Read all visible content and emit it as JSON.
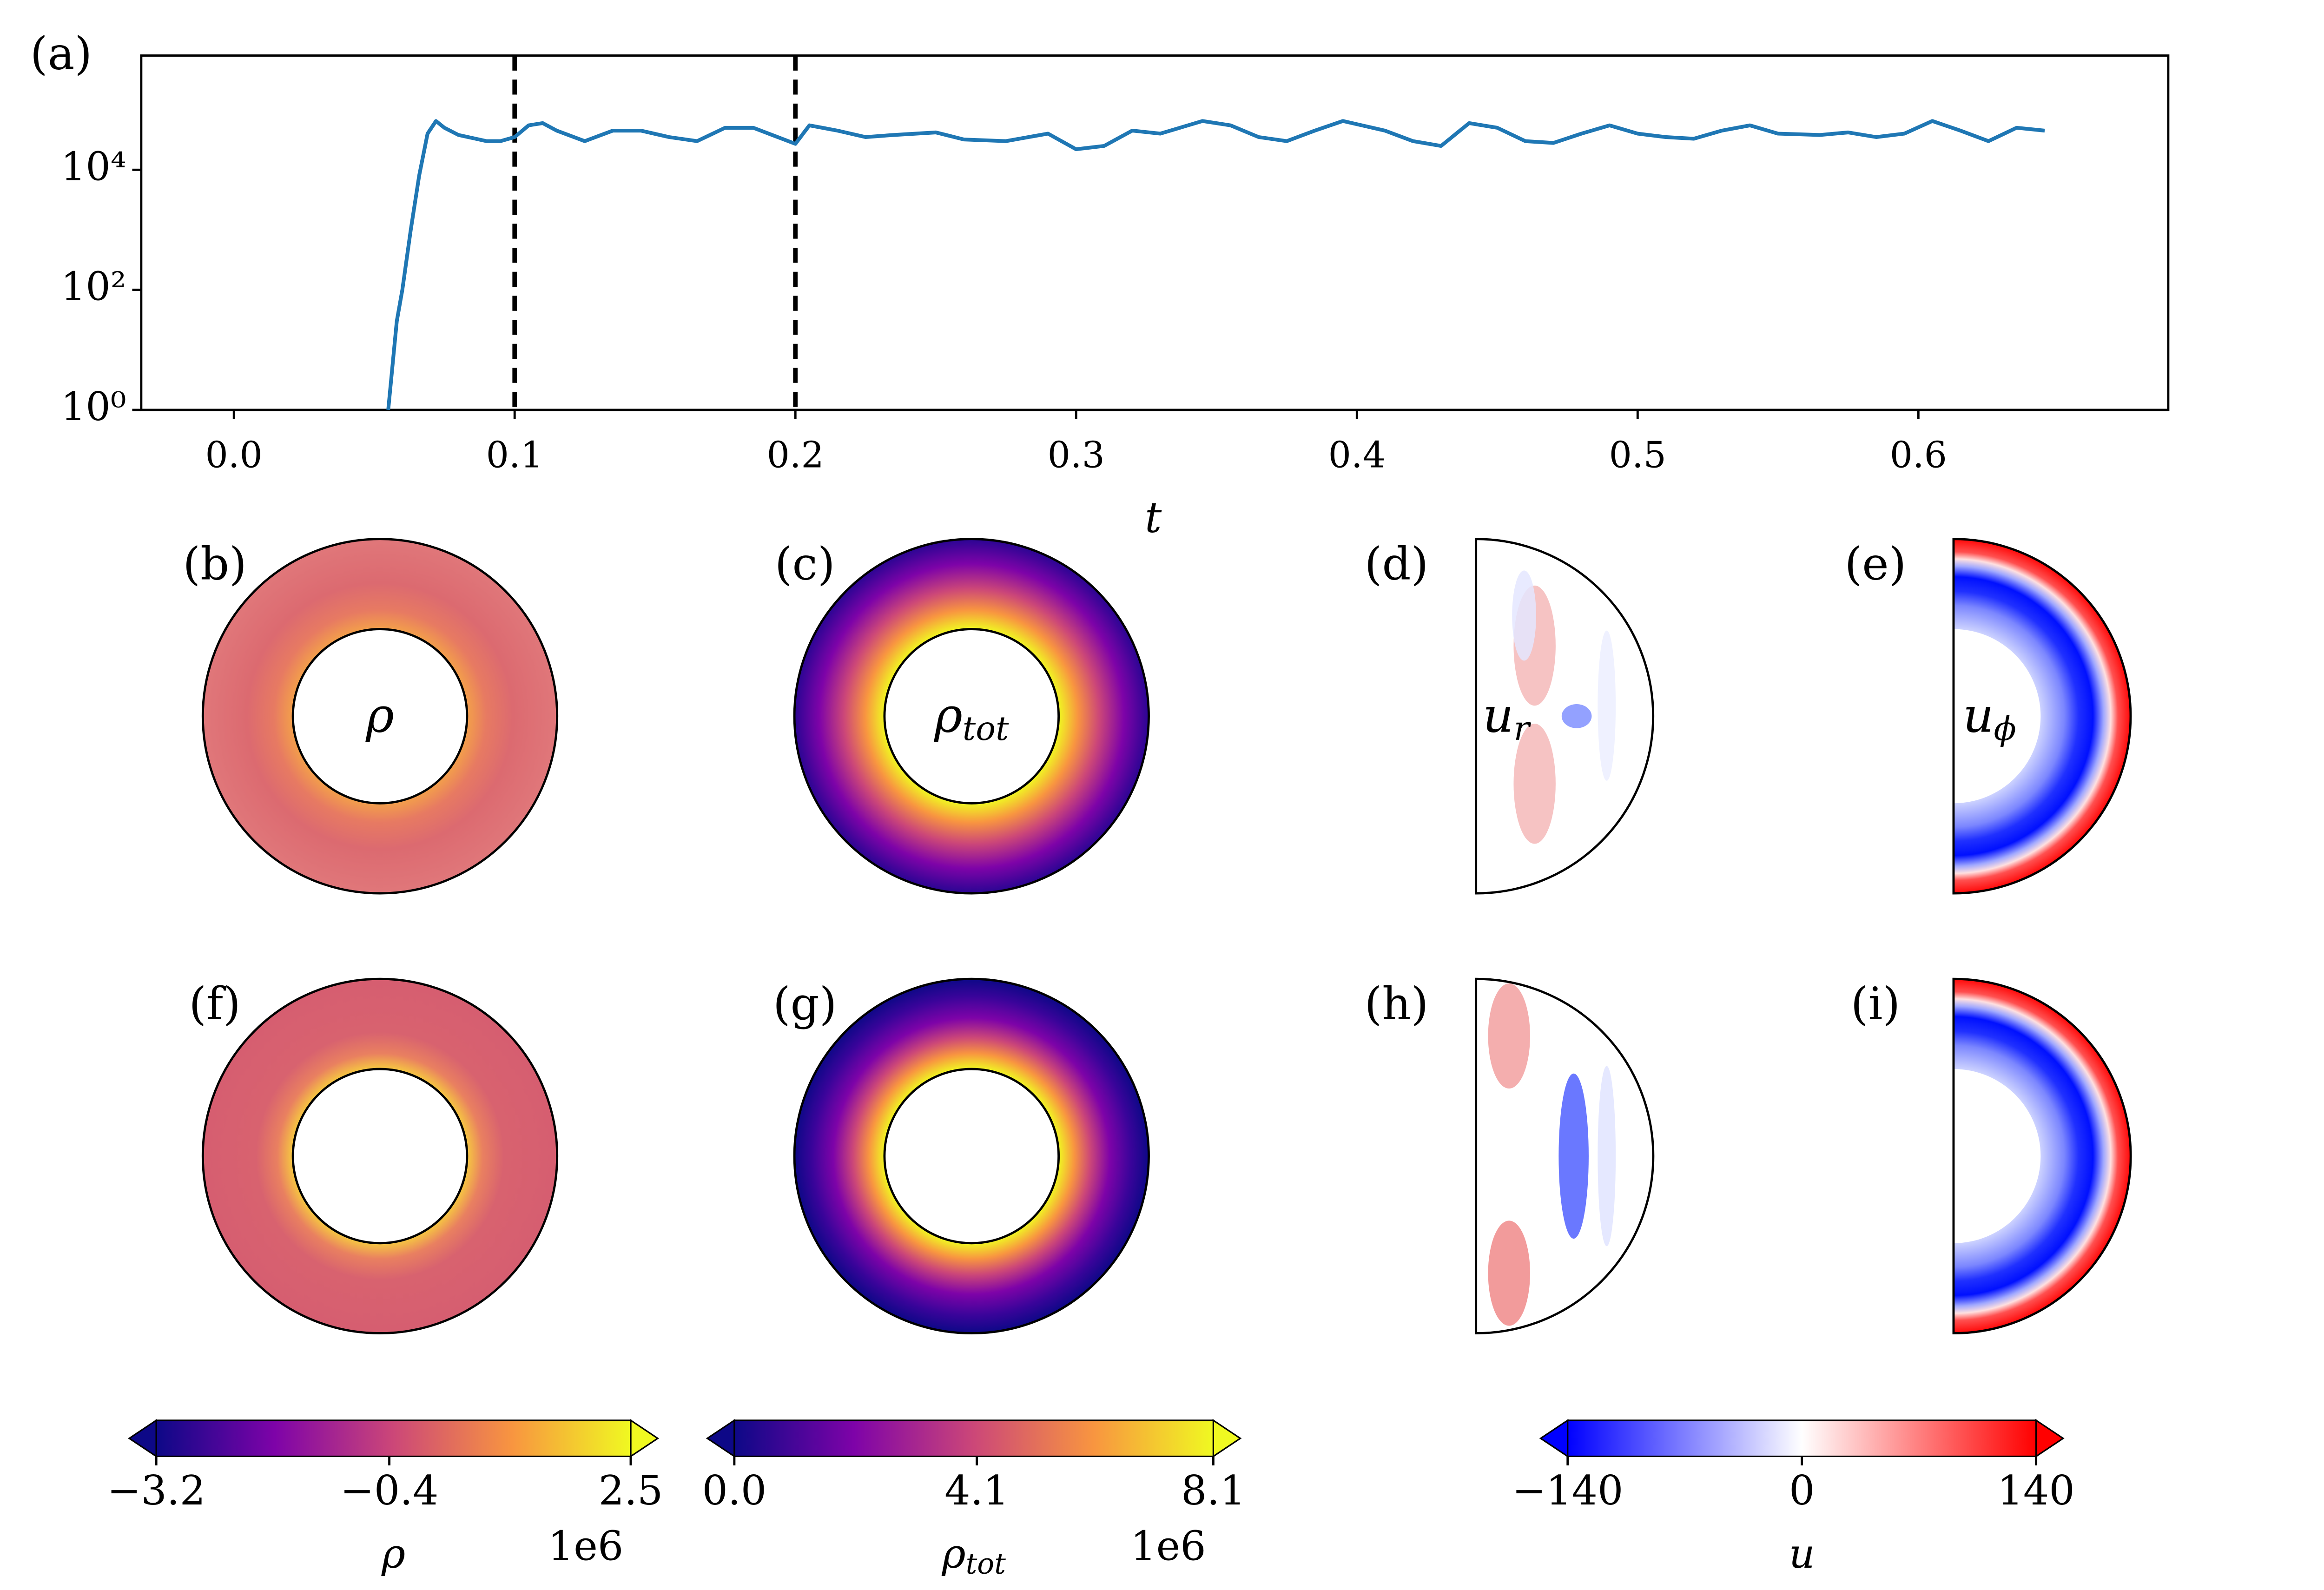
{
  "chart_data": [
    {
      "type": "line",
      "title": "(a)",
      "xlabel": "t",
      "yscale": "log",
      "color": "#1f77b4",
      "xlim": [
        -0.033,
        0.689
      ],
      "xticks": [
        {
          "value": 0,
          "label": "0.0"
        },
        0.1,
        0.2,
        0.3,
        0.4,
        0.5,
        0.6
      ],
      "ylim": [
        1,
        800000
      ],
      "yticks": [
        {
          "value": 1,
          "label": "10⁰"
        },
        {
          "value": 100,
          "label": "10²"
        },
        {
          "value": 10000,
          "label": "10⁴"
        }
      ],
      "vlines": [
        0.1,
        0.2
      ],
      "x": [
        0.055,
        0.058,
        0.06,
        0.063,
        0.066,
        0.069,
        0.072,
        0.075,
        0.08,
        0.09,
        0.095,
        0.1,
        0.105,
        0.11,
        0.115,
        0.125,
        0.135,
        0.145,
        0.155,
        0.165,
        0.175,
        0.185,
        0.2,
        0.205,
        0.215,
        0.225,
        0.235,
        0.25,
        0.26,
        0.275,
        0.29,
        0.3,
        0.31,
        0.32,
        0.33,
        0.345,
        0.355,
        0.365,
        0.375,
        0.385,
        0.395,
        0.41,
        0.42,
        0.43,
        0.44,
        0.45,
        0.46,
        0.47,
        0.48,
        0.49,
        0.5,
        0.51,
        0.52,
        0.53,
        0.54,
        0.55,
        0.565,
        0.575,
        0.585,
        0.595,
        0.605,
        0.615,
        0.625,
        0.635,
        0.645
      ],
      "values": [
        1,
        30,
        100,
        1000,
        8000,
        40000,
        65000,
        50000,
        38000,
        30000,
        30000,
        35000,
        55000,
        60000,
        45000,
        30000,
        45000,
        45000,
        35000,
        30000,
        50000,
        50000,
        27000,
        55000,
        45000,
        35000,
        38000,
        42000,
        32000,
        30000,
        40000,
        22000,
        25000,
        45000,
        40000,
        65000,
        55000,
        35000,
        30000,
        45000,
        65000,
        45000,
        30000,
        25000,
        60000,
        50000,
        30000,
        28000,
        40000,
        55000,
        40000,
        35000,
        33000,
        45000,
        55000,
        40000,
        38000,
        42000,
        35000,
        40000,
        65000,
        45000,
        30000,
        50000,
        45000
      ]
    },
    {
      "type": "colorbar",
      "colormap": "plasma",
      "extend": "both",
      "xlim": [
        -3.2,
        2.5
      ],
      "xticks": [
        {
          "value": -3.2,
          "label": "−3.2"
        },
        {
          "value": -0.4,
          "label": "−0.4"
        },
        2.5
      ],
      "xlabel": "ρ",
      "offset": "1e6"
    },
    {
      "type": "colorbar",
      "colormap": "plasma",
      "extend": "both",
      "xlim": [
        0,
        8.1
      ],
      "xticks": [
        {
          "value": 0,
          "label": "0.0"
        },
        4.1,
        8.1
      ],
      "xlabel": "ρ",
      "xlabel_subscript": "tot",
      "offset": "1e6"
    },
    {
      "type": "colorbar",
      "colormap": "bwr",
      "extend": "both",
      "xlim": [
        -140,
        140
      ],
      "xticks": [
        {
          "value": -140,
          "label": "−140"
        },
        0,
        140
      ],
      "xlabel": "u"
    }
  ],
  "panels": [
    {
      "label": "(b)",
      "symbol": "ρ"
    },
    {
      "label": "(c)",
      "symbol": "ρ",
      "subscript": "tot"
    },
    {
      "label": "(d)",
      "symbol": "u",
      "subscript": "r"
    },
    {
      "label": "(e)",
      "symbol": "u",
      "subscript": "ϕ"
    },
    {
      "label": "(f)"
    },
    {
      "label": "(g)"
    },
    {
      "label": "(h)"
    },
    {
      "label": "(i)"
    }
  ]
}
